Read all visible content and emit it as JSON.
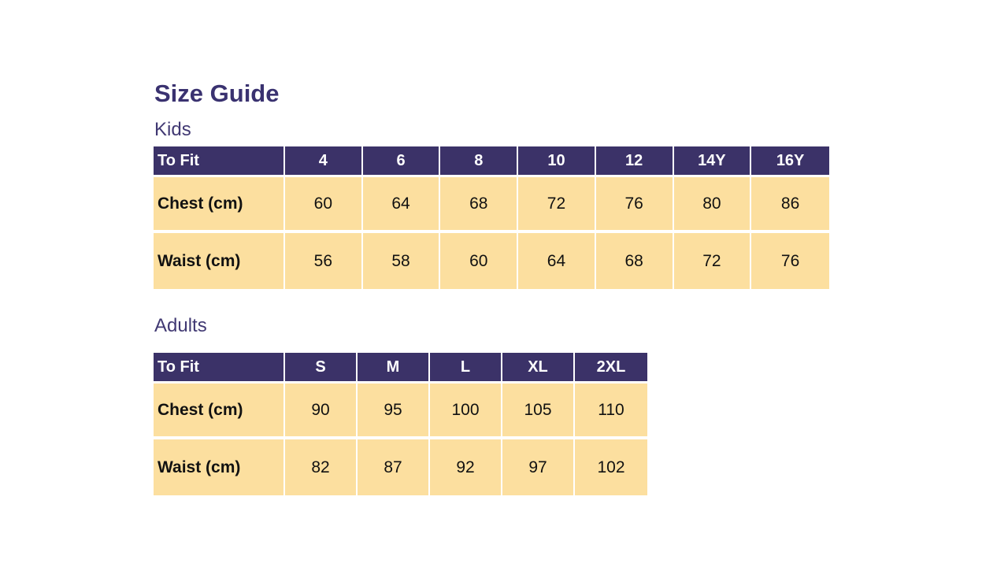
{
  "page": {
    "title": "Size Guide"
  },
  "colors": {
    "header_bg": "#3B3268",
    "body_bg": "#FCDF9F",
    "header_text": "#FFFFFF",
    "title_text": "#3A3270",
    "section_text": "#413973",
    "body_text": "#111111"
  },
  "sections": [
    {
      "label": "Kids",
      "table": {
        "columns": [
          "To Fit",
          "4",
          "6",
          "8",
          "10",
          "12",
          "14Y",
          "16Y"
        ],
        "rows": [
          {
            "label": "Chest (cm)",
            "values": [
              "60",
              "64",
              "68",
              "72",
              "76",
              "80",
              "86"
            ]
          },
          {
            "label": "Waist (cm)",
            "values": [
              "56",
              "58",
              "60",
              "64",
              "68",
              "72",
              "76"
            ]
          }
        ]
      }
    },
    {
      "label": "Adults",
      "table": {
        "columns": [
          "To Fit",
          "S",
          "M",
          "L",
          "XL",
          "2XL"
        ],
        "rows": [
          {
            "label": "Chest (cm)",
            "values": [
              "90",
              "95",
              "100",
              "105",
              "110"
            ]
          },
          {
            "label": "Waist (cm)",
            "values": [
              "82",
              "87",
              "92",
              "97",
              "102"
            ]
          }
        ]
      }
    }
  ]
}
